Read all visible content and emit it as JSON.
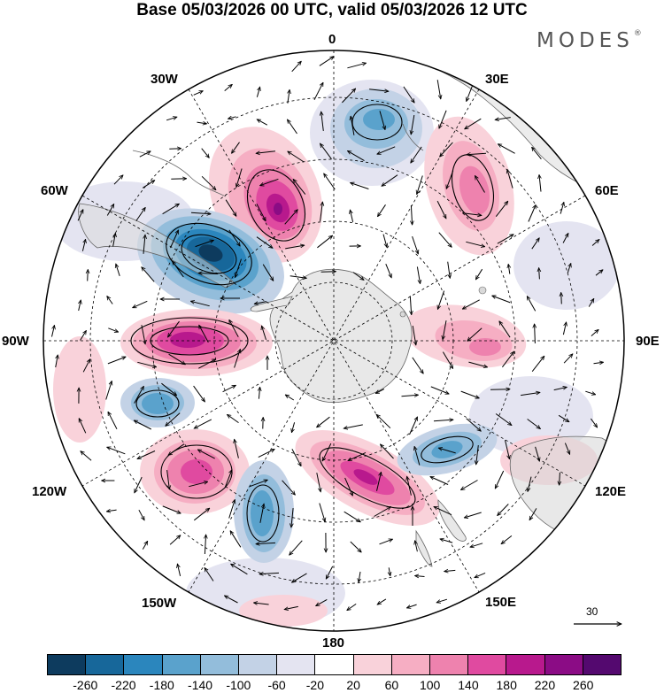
{
  "title": "Base 05/03/2026 00 UTC, valid 05/03/2026 12 UTC",
  "brand": "MODES",
  "brand_mark": "®",
  "longitude_labels": {
    "lon_0": "0",
    "lon_30e": "30E",
    "lon_60e": "60E",
    "lon_90e": "90E",
    "lon_120e": "120E",
    "lon_150e": "150E",
    "lon_180": "180",
    "lon_150w": "150W",
    "lon_120w": "120W",
    "lon_90w": "90W",
    "lon_60w": "60W",
    "lon_30w": "30W"
  },
  "reference_vector": "30",
  "colorbar": {
    "labels": [
      "-260",
      "-220",
      "-180",
      "-140",
      "-100",
      "-60",
      "-20",
      "20",
      "60",
      "100",
      "140",
      "180",
      "220",
      "260"
    ],
    "colors": [
      "#0d3b5e",
      "#17679a",
      "#2b86bd",
      "#5aa2cc",
      "#93bddb",
      "#c3d2e6",
      "#e4e4f1",
      "#ffffff",
      "#f9d2da",
      "#f6aec3",
      "#ee82ae",
      "#e04aa0",
      "#b8198d",
      "#8b0c85",
      "#54096f"
    ]
  },
  "anomalies": [
    {
      "id": "blue-atlantic",
      "value": -160
    },
    {
      "id": "pink-south-atlantic",
      "value": 230
    },
    {
      "id": "blue-drake-passage",
      "value": -270
    },
    {
      "id": "pink-indian-west",
      "value": 120
    },
    {
      "id": "pink-bellingshausen",
      "value": 210
    },
    {
      "id": "blue-amundsen",
      "value": -150
    },
    {
      "id": "pink-pacific-west",
      "value": 180
    },
    {
      "id": "blue-ross-sea",
      "value": -150
    },
    {
      "id": "pink-tasman",
      "value": 200
    },
    {
      "id": "blue-indian-south",
      "value": -130
    },
    {
      "id": "pink-indian-east",
      "value": 110
    }
  ]
}
